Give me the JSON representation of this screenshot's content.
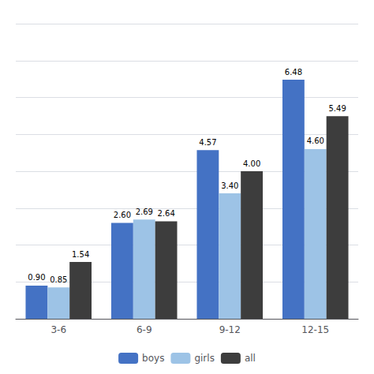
{
  "chart_data": {
    "type": "bar",
    "categories": [
      "3-6",
      "6-9",
      "9-12",
      "12-15"
    ],
    "series": [
      {
        "name": "boys",
        "color": "#4472c4",
        "values": [
          0.9,
          2.6,
          4.57,
          6.48
        ],
        "value_labels": [
          "0.90",
          "2.60",
          "4.57",
          "6.48"
        ]
      },
      {
        "name": "girls",
        "color": "#9dc3e6",
        "values": [
          0.85,
          2.69,
          3.4,
          4.6
        ],
        "value_labels": [
          "0.85",
          "2.69",
          "3.40",
          "4.60"
        ]
      },
      {
        "name": "all",
        "color": "#3d3d3d",
        "values": [
          1.54,
          2.64,
          4.0,
          5.49
        ],
        "value_labels": [
          "1.54",
          "2.64",
          "4.00",
          "5.49"
        ]
      }
    ],
    "ylim": [
      0,
      8.0
    ],
    "yticks": [
      0,
      1,
      2,
      3,
      4,
      5,
      6,
      7,
      8
    ],
    "grid": true,
    "legend": "bottom",
    "data_labels": true,
    "tick_labels": "x"
  }
}
